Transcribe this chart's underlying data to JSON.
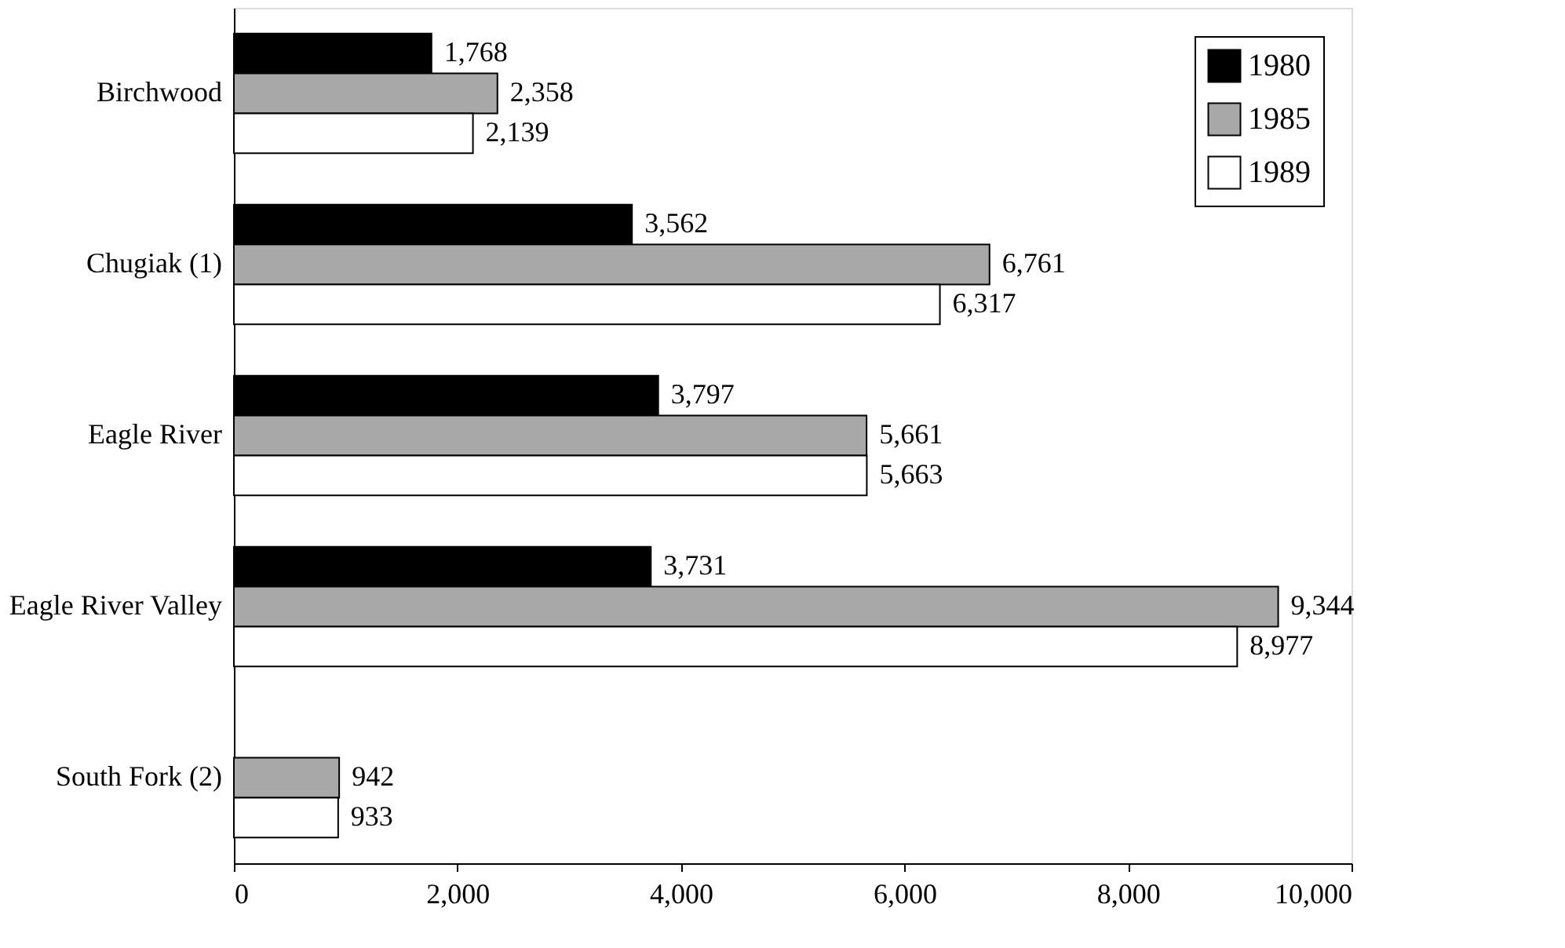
{
  "chart_data": {
    "type": "bar",
    "orientation": "horizontal",
    "categories": [
      "Birchwood",
      "Chugiak (1)",
      "Eagle River",
      "Eagle River Valley",
      "South Fork (2)"
    ],
    "series": [
      {
        "name": "1980",
        "color": "#000000",
        "values": [
          1768,
          3562,
          3797,
          3731,
          null
        ],
        "value_labels": [
          "1,768",
          "3,562",
          "3,797",
          "3,731",
          null
        ]
      },
      {
        "name": "1985",
        "color": "#a8a8a8",
        "values": [
          2358,
          6761,
          5661,
          9344,
          942
        ],
        "value_labels": [
          "2,358",
          "6,761",
          "5,661",
          "9,344",
          "942"
        ]
      },
      {
        "name": "1989",
        "color": "#ffffff",
        "values": [
          2139,
          6317,
          5663,
          8977,
          933
        ],
        "value_labels": [
          "2,139",
          "6,317",
          "5,663",
          "8,977",
          "933"
        ]
      }
    ],
    "xlim": [
      0,
      10000
    ],
    "xticks": [
      0,
      {
        "value": 2000,
        "label": "2,000"
      },
      {
        "value": 4000,
        "label": "4,000"
      },
      {
        "value": 6000,
        "label": "6,000"
      },
      {
        "value": 8000,
        "label": "8,000"
      },
      {
        "value": 10000,
        "label": "10,000"
      }
    ],
    "legend": "top right",
    "grid": false
  }
}
